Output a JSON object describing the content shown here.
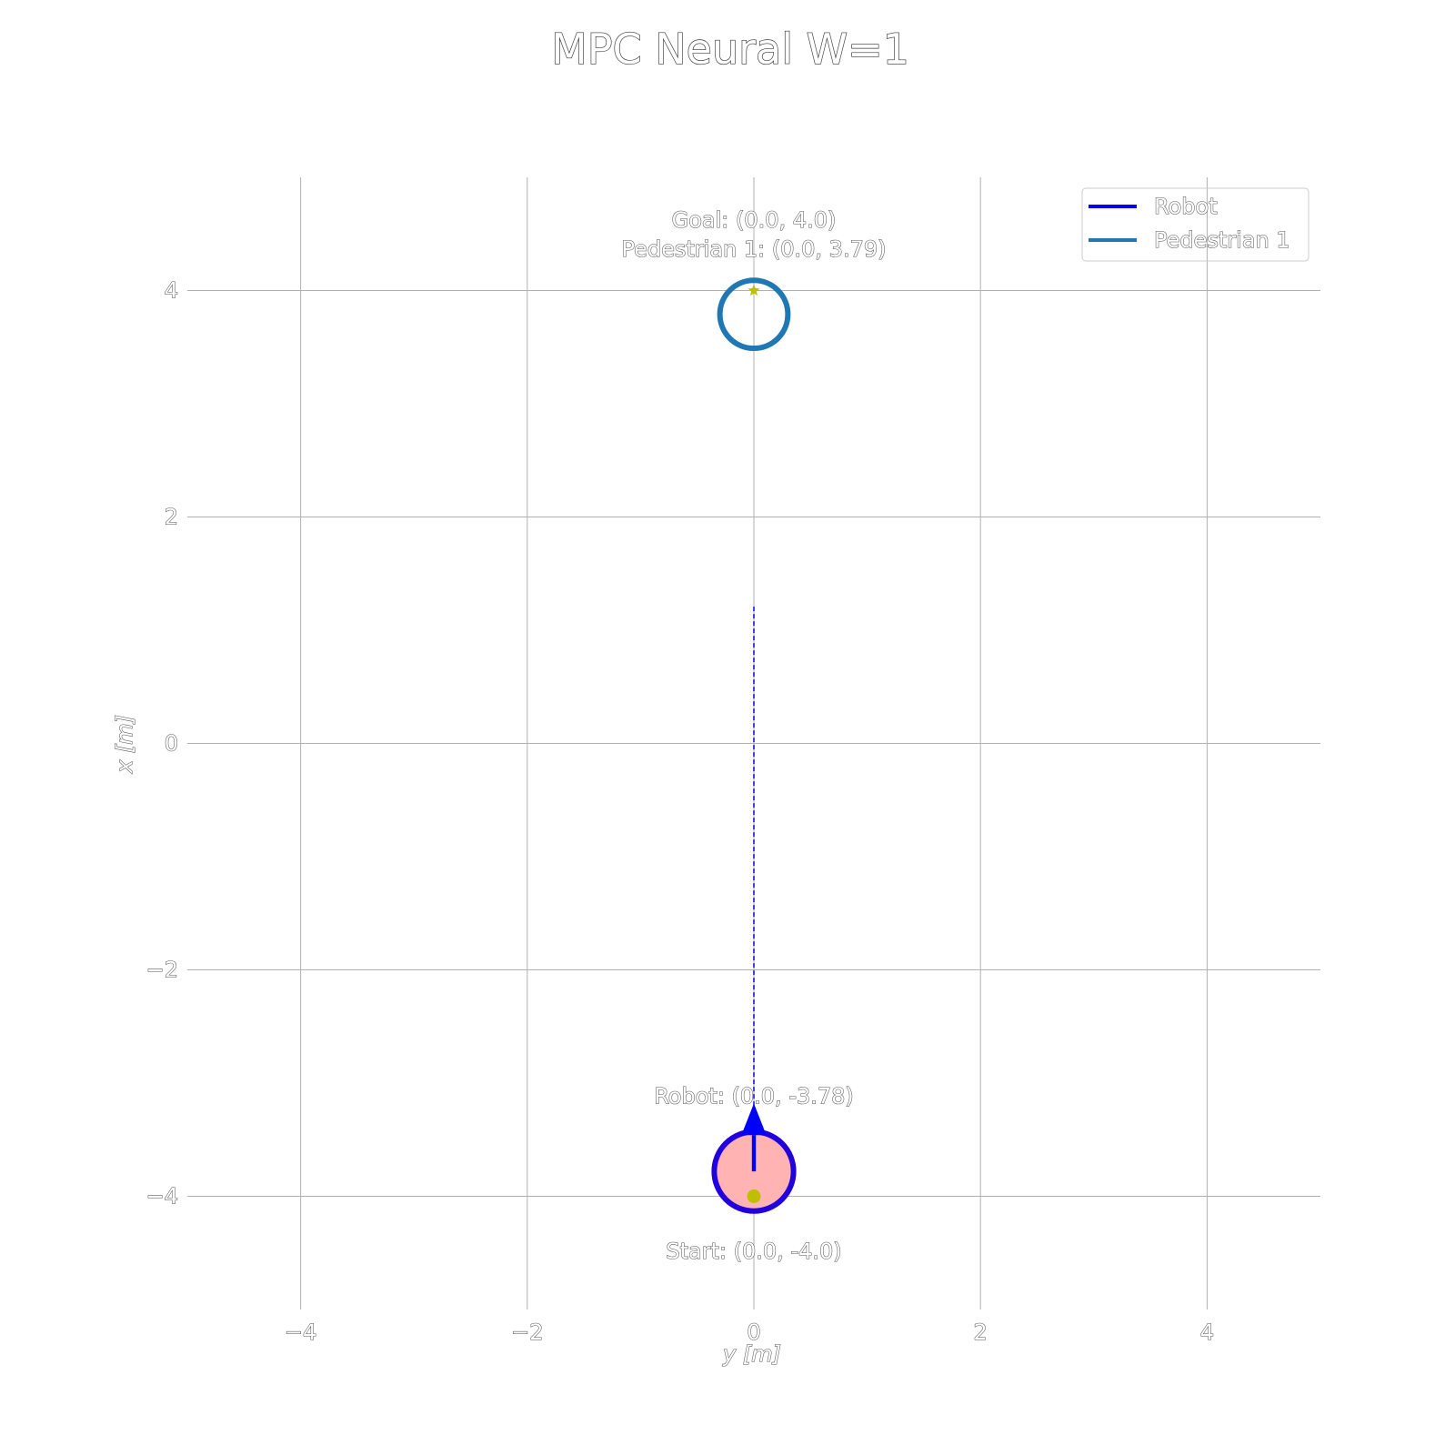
{
  "chart_data": {
    "type": "scatter",
    "title": "MPC Neural W=1",
    "xlabel": "y [m]",
    "ylabel": "x [m]",
    "xlim": [
      -5,
      5
    ],
    "ylim": [
      -5,
      5
    ],
    "xticks": [
      -4,
      -2,
      0,
      2,
      4
    ],
    "yticks": [
      -4,
      -2,
      0,
      2,
      4
    ],
    "xtick_labels": [
      "−4",
      "−2",
      "0",
      "2",
      "4"
    ],
    "ytick_labels": [
      "−4",
      "−2",
      "0",
      "2",
      "4"
    ],
    "grid": true,
    "legend": {
      "placement": "top-right",
      "entries": [
        {
          "name": "Robot",
          "color": "#0000ff"
        },
        {
          "name": "Pedestrian 1",
          "color": "#1f77b4"
        }
      ]
    },
    "robot": {
      "position": [
        0.0,
        -3.78
      ],
      "radius": 0.35,
      "fill_color": "#ffb3b3",
      "edge_color": "#2200dd",
      "heading_deg": 90,
      "label": "Robot: (0.0, -3.78)"
    },
    "robot_planned_path": {
      "y": [
        0.0,
        0.0
      ],
      "x": [
        -3.78,
        1.22
      ],
      "color": "#0000ff",
      "style": "dashed"
    },
    "pedestrian": {
      "name": "Pedestrian 1",
      "position": [
        0.0,
        3.79
      ],
      "radius": 0.3,
      "color": "#1f77b4",
      "label": "Pedestrian 1: (0.0, 3.79)"
    },
    "start": {
      "position": [
        0.0,
        -4.0
      ],
      "color": "#bfbf00",
      "marker": "dot",
      "label": "Start: (0.0, -4.0)"
    },
    "goal": {
      "position": [
        0.0,
        4.0
      ],
      "color": "#bfbf00",
      "marker": "star",
      "label": "Goal: (0.0, 4.0)"
    }
  }
}
